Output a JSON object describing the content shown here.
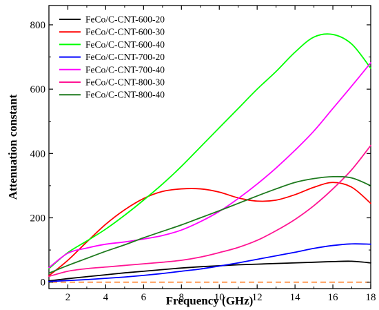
{
  "chart_data": {
    "type": "line",
    "title": "",
    "xlabel": "Frequency (GHz)",
    "ylabel": "Attenuation constant",
    "xlim": [
      1,
      18
    ],
    "ylim": [
      -20,
      860
    ],
    "x_ticks": [
      2,
      4,
      6,
      8,
      10,
      12,
      14,
      16,
      18
    ],
    "y_ticks": [
      0,
      200,
      400,
      600,
      800
    ],
    "grid": false,
    "legend_position": "top-left",
    "x": [
      1,
      2,
      3,
      4,
      5,
      6,
      7,
      8,
      9,
      10,
      11,
      12,
      13,
      14,
      15,
      16,
      17,
      18
    ],
    "series": [
      {
        "name": "FeCo/C-CNT-600-20",
        "color": "#000000",
        "values": [
          4,
          11,
          17,
          23,
          29,
          34,
          39,
          44,
          48,
          51,
          54,
          56,
          58,
          60,
          62,
          64,
          65,
          60
        ]
      },
      {
        "name": "FeCo/C-CNT-600-30",
        "color": "#ff0000",
        "values": [
          20,
          68,
          125,
          180,
          225,
          260,
          282,
          290,
          290,
          280,
          262,
          252,
          255,
          272,
          295,
          310,
          295,
          245
        ]
      },
      {
        "name": "FeCo/C-CNT-600-40",
        "color": "#00ff00",
        "values": [
          42,
          92,
          128,
          165,
          208,
          255,
          305,
          360,
          420,
          480,
          540,
          600,
          655,
          715,
          762,
          770,
          740,
          665
        ]
      },
      {
        "name": "FeCo/C-CNT-700-20",
        "color": "#0000ff",
        "values": [
          2,
          5,
          8,
          12,
          16,
          21,
          27,
          34,
          41,
          50,
          60,
          71,
          82,
          93,
          105,
          114,
          119,
          118
        ]
      },
      {
        "name": "FeCo/C-CNT-700-40",
        "color": "#ff00ff",
        "values": [
          45,
          90,
          106,
          118,
          125,
          134,
          145,
          162,
          188,
          220,
          260,
          305,
          355,
          410,
          470,
          540,
          610,
          682
        ]
      },
      {
        "name": "FeCo/C-CNT-800-30",
        "color": "#ff1493",
        "values": [
          18,
          34,
          42,
          47,
          52,
          57,
          62,
          68,
          78,
          92,
          108,
          130,
          160,
          195,
          238,
          290,
          350,
          425
        ]
      },
      {
        "name": "FeCo/C-CNT-800-40",
        "color": "#1e7a1e",
        "values": [
          28,
          52,
          74,
          96,
          116,
          138,
          158,
          178,
          200,
          222,
          245,
          268,
          290,
          310,
          322,
          328,
          324,
          300
        ]
      }
    ],
    "reference_line": {
      "y": 0,
      "color": "#ff7f27",
      "style": "dashed"
    }
  }
}
